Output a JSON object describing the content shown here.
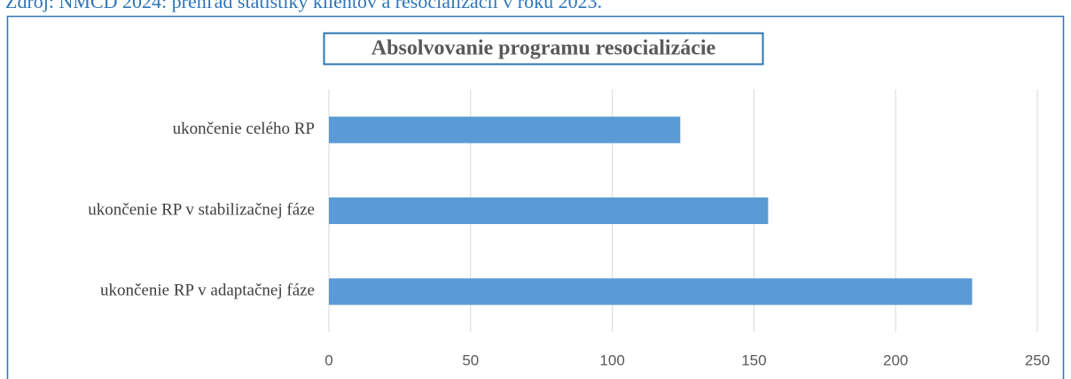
{
  "caption": "Zdroj: NMCD 2024: prehľad štatistiky klientov a resocializácií v roku 2023.",
  "chart_data": {
    "type": "bar",
    "orientation": "horizontal",
    "title": "Absolvovanie programu resocializácie",
    "categories": [
      "ukončenie celého RP",
      "ukončenie RP v stabilizačnej fáze",
      "ukončenie RP v adaptačnej fáze"
    ],
    "values": [
      124,
      155,
      227
    ],
    "color": "#5b9bd5",
    "xlim": [
      0,
      250
    ],
    "xticks": [
      0,
      50,
      100,
      150,
      200,
      250
    ],
    "grid": true
  }
}
